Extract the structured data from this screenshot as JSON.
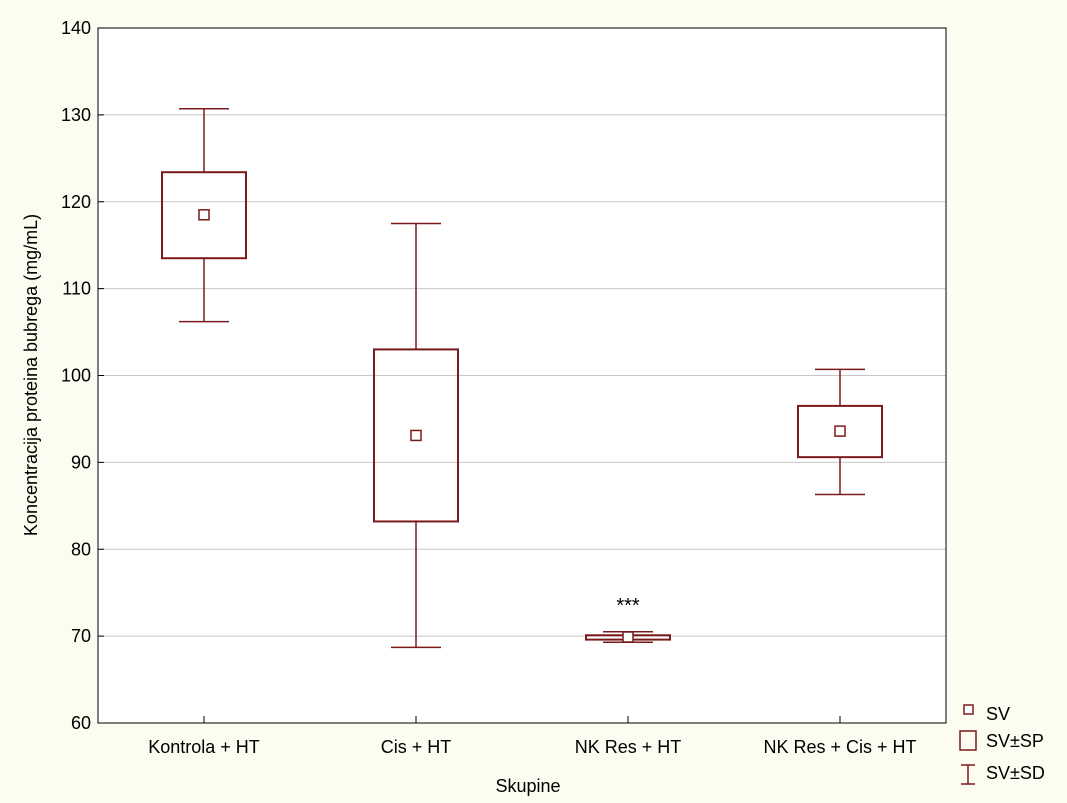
{
  "chart_data": {
    "type": "box",
    "title": "",
    "xlabel": "Skupine",
    "ylabel": "Koncentracija proteina bubrega (mg/mL)",
    "ylim": [
      60,
      140
    ],
    "yticks": [
      60,
      70,
      80,
      90,
      100,
      110,
      120,
      130,
      140
    ],
    "grid": true,
    "legend_position": "bottom-right outside",
    "categories": [
      "Kontrola + HT",
      "Cis + HT",
      "NK Res + HT",
      "NK Res + Cis + HT"
    ],
    "groups": [
      {
        "category": "Kontrola + HT",
        "mean": 118.5,
        "se_low": 113.5,
        "se_high": 123.4,
        "sd_low": 106.2,
        "sd_high": 130.7,
        "annotation": ""
      },
      {
        "category": "Cis + HT",
        "mean": 93.1,
        "se_low": 83.2,
        "se_high": 103.0,
        "sd_low": 68.7,
        "sd_high": 117.5,
        "annotation": ""
      },
      {
        "category": "NK Res + HT",
        "mean": 69.9,
        "se_low": 69.6,
        "se_high": 70.1,
        "sd_low": 69.3,
        "sd_high": 70.5,
        "annotation": "***"
      },
      {
        "category": "NK Res + Cis + HT",
        "mean": 93.6,
        "se_low": 90.6,
        "se_high": 96.5,
        "sd_low": 86.3,
        "sd_high": 100.7,
        "annotation": ""
      }
    ],
    "legend": [
      "SV",
      "SV±SP",
      "SV±SD"
    ]
  },
  "colors": {
    "series": "#7a1a1a",
    "grid": "#c8c8c8",
    "plot_bg": "#ffffff",
    "page_bg": "#fdfcf0"
  }
}
